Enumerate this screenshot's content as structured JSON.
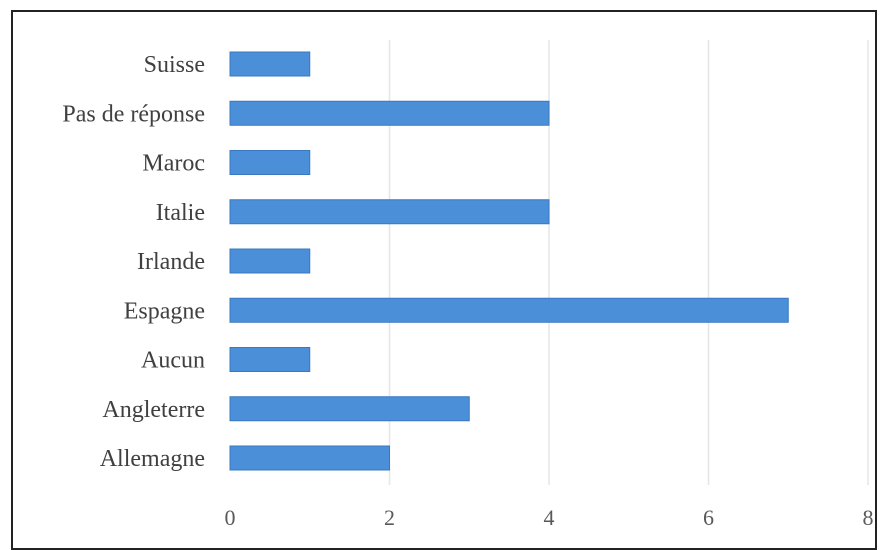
{
  "chart_data": {
    "type": "bar",
    "orientation": "horizontal",
    "categories": [
      "Suisse",
      "Pas de réponse",
      "Maroc",
      "Italie",
      "Irlande",
      "Espagne",
      "Aucun",
      "Angleterre",
      "Allemagne"
    ],
    "values": [
      1,
      4,
      1,
      4,
      1,
      7,
      1,
      3,
      2
    ],
    "xlim": [
      0,
      8
    ],
    "xticks": [
      "0",
      "2",
      "4",
      "6",
      "8"
    ],
    "grid": true,
    "legend": "none",
    "colors": {
      "bar": "#4a8fd8",
      "bar_edge": "#3a78c0",
      "grid": "#e6e6e6",
      "frame": "#222222"
    }
  }
}
